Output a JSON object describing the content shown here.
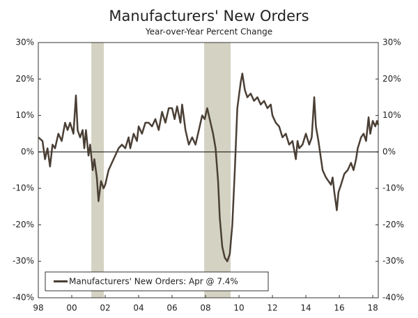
{
  "chart_data": {
    "type": "line",
    "title": "Manufacturers' New Orders",
    "subtitle": "Year-over-Year Percent Change",
    "x": [
      1998.0,
      1998.25,
      1998.4,
      1998.55,
      1998.7,
      1998.85,
      1999.0,
      1999.2,
      1999.4,
      1999.6,
      1999.75,
      1999.9,
      2000.1,
      2000.25,
      2000.35,
      2000.5,
      2000.65,
      2000.75,
      2000.85,
      2001.0,
      2001.1,
      2001.25,
      2001.35,
      2001.5,
      2001.6,
      2001.75,
      2001.9,
      2002.0,
      2002.2,
      2002.4,
      2002.6,
      2002.8,
      2003.0,
      2003.2,
      2003.4,
      2003.5,
      2003.7,
      2003.9,
      2004.0,
      2004.2,
      2004.4,
      2004.6,
      2004.8,
      2005.0,
      2005.2,
      2005.4,
      2005.6,
      2005.8,
      2006.0,
      2006.15,
      2006.3,
      2006.5,
      2006.6,
      2006.8,
      2007.0,
      2007.2,
      2007.4,
      2007.6,
      2007.8,
      2007.95,
      2008.1,
      2008.3,
      2008.45,
      2008.6,
      2008.75,
      2008.85,
      2009.0,
      2009.15,
      2009.3,
      2009.45,
      2009.6,
      2009.75,
      2009.9,
      2010.1,
      2010.2,
      2010.35,
      2010.5,
      2010.7,
      2010.9,
      2011.1,
      2011.3,
      2011.5,
      2011.7,
      2011.9,
      2012.0,
      2012.2,
      2012.4,
      2012.6,
      2012.8,
      2013.0,
      2013.2,
      2013.4,
      2013.5,
      2013.6,
      2013.8,
      2014.0,
      2014.2,
      2014.35,
      2014.5,
      2014.6,
      2014.75,
      2015.0,
      2015.2,
      2015.35,
      2015.5,
      2015.6,
      2015.7,
      2015.85,
      2015.95,
      2016.1,
      2016.3,
      2016.5,
      2016.7,
      2016.85,
      2017.0,
      2017.1,
      2017.3,
      2017.45,
      2017.6,
      2017.75,
      2017.85,
      2018.0,
      2018.15,
      2018.25,
      2018.33
    ],
    "series": [
      {
        "name": "Manufacturers' New Orders: Apr @ 7.4%",
        "color": "#4a3f35",
        "values": [
          4,
          3,
          -2,
          1,
          -4,
          2,
          1,
          5,
          3,
          8,
          6,
          8,
          5,
          15.5,
          6,
          4,
          6,
          1,
          6,
          -1,
          2,
          -5,
          -2,
          -7,
          -13.5,
          -8,
          -10,
          -9,
          -5,
          -3,
          -1,
          1,
          2,
          1,
          4,
          1,
          5,
          3,
          7,
          5,
          8,
          8,
          7,
          9,
          6,
          11,
          8,
          12,
          12,
          9,
          12.5,
          8,
          13,
          6,
          2,
          4,
          2,
          6,
          10,
          9,
          12,
          8,
          5,
          1,
          -8,
          -18,
          -26,
          -29,
          -30,
          -28,
          -20,
          -5,
          12,
          19,
          21.5,
          17,
          15,
          16,
          14,
          15,
          13,
          14,
          12,
          13,
          10,
          8,
          7,
          4,
          5,
          2,
          3,
          -2,
          3,
          1,
          2,
          5,
          2,
          4,
          15,
          7,
          3,
          -5,
          -7,
          -8,
          -9,
          -7,
          -11,
          -16,
          -11,
          -9,
          -6,
          -5,
          -3,
          -5,
          -2,
          1,
          4,
          5,
          3,
          9.5,
          5,
          8.5,
          7,
          8.5,
          7.4
        ]
      }
    ],
    "recessions": [
      [
        2001.17,
        2001.92
      ],
      [
        2007.92,
        2009.5
      ]
    ],
    "recession_color": "#d4d2c2",
    "xlim": [
      1998,
      2018.33
    ],
    "xticks": [
      {
        "value": 1998,
        "label": "98"
      },
      {
        "value": 2000,
        "label": "00"
      },
      {
        "value": 2002,
        "label": "02"
      },
      {
        "value": 2004,
        "label": "04"
      },
      {
        "value": 2006,
        "label": "06"
      },
      {
        "value": 2008,
        "label": "08"
      },
      {
        "value": 2010,
        "label": "10"
      },
      {
        "value": 2012,
        "label": "12"
      },
      {
        "value": 2014,
        "label": "14"
      },
      {
        "value": 2016,
        "label": "16"
      },
      {
        "value": 2018,
        "label": "18"
      }
    ],
    "ylim": [
      -40,
      30
    ],
    "yticks": [
      {
        "value": -40,
        "label": "-40%"
      },
      {
        "value": -30,
        "label": "-30%"
      },
      {
        "value": -20,
        "label": "-20%"
      },
      {
        "value": -10,
        "label": "-10%"
      },
      {
        "value": 0,
        "label": "0%"
      },
      {
        "value": 10,
        "label": "10%"
      },
      {
        "value": 20,
        "label": "20%"
      },
      {
        "value": 30,
        "label": "30%"
      }
    ],
    "legend": "lower left"
  }
}
